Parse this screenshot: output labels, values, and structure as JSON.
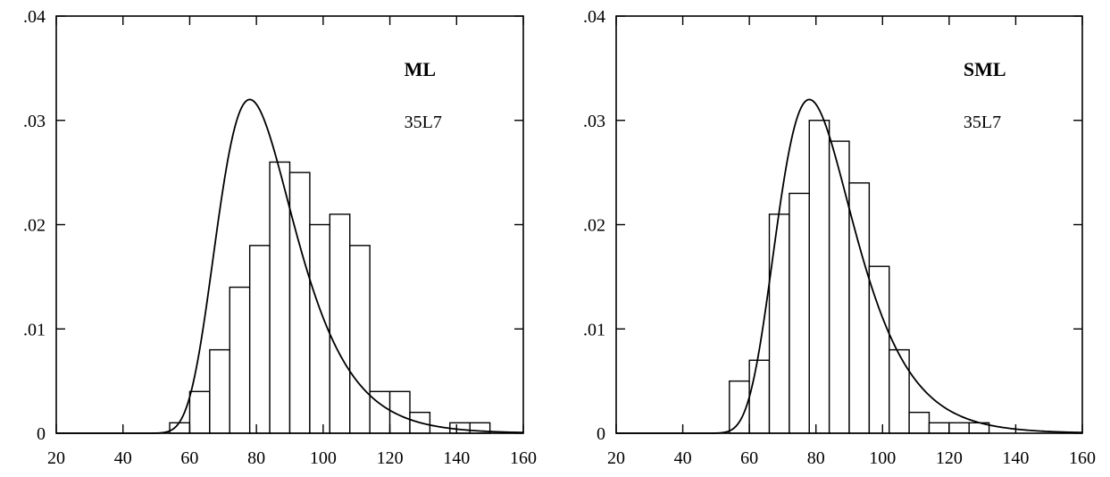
{
  "chart_data": [
    {
      "type": "bar",
      "title": "ML",
      "subtitle": "35L7",
      "xlim": [
        20,
        160
      ],
      "ylim": [
        0,
        0.04
      ],
      "xticks": [
        20,
        40,
        60,
        80,
        100,
        120,
        140,
        160
      ],
      "xtick_labels": [
        "20",
        "40",
        "60",
        "80",
        "100",
        "120",
        "140",
        "160"
      ],
      "yticks": [
        0,
        0.01,
        0.02,
        0.03,
        0.04
      ],
      "ytick_labels": [
        "0",
        ".01",
        ".02",
        ".03",
        ".04"
      ],
      "bin_width": 6,
      "bins": [
        {
          "x0": 54,
          "x1": 60,
          "value": 0.001
        },
        {
          "x0": 60,
          "x1": 66,
          "value": 0.004
        },
        {
          "x0": 66,
          "x1": 72,
          "value": 0.008
        },
        {
          "x0": 72,
          "x1": 78,
          "value": 0.014
        },
        {
          "x0": 78,
          "x1": 84,
          "value": 0.018
        },
        {
          "x0": 84,
          "x1": 90,
          "value": 0.026
        },
        {
          "x0": 90,
          "x1": 96,
          "value": 0.025
        },
        {
          "x0": 96,
          "x1": 102,
          "value": 0.02
        },
        {
          "x0": 102,
          "x1": 108,
          "value": 0.021
        },
        {
          "x0": 108,
          "x1": 114,
          "value": 0.018
        },
        {
          "x0": 114,
          "x1": 120,
          "value": 0.004
        },
        {
          "x0": 120,
          "x1": 126,
          "value": 0.004
        },
        {
          "x0": 126,
          "x1": 132,
          "value": 0.002
        },
        {
          "x0": 138,
          "x1": 144,
          "value": 0.001
        },
        {
          "x0": 144,
          "x1": 150,
          "value": 0.001
        }
      ],
      "curve": {
        "type": "gumbel",
        "mode": 78,
        "peak": 0.032,
        "scale": 11.5
      }
    },
    {
      "type": "bar",
      "title": "SML",
      "subtitle": "35L7",
      "xlim": [
        20,
        160
      ],
      "ylim": [
        0,
        0.04
      ],
      "xticks": [
        20,
        40,
        60,
        80,
        100,
        120,
        140,
        160
      ],
      "xtick_labels": [
        "20",
        "40",
        "60",
        "80",
        "100",
        "120",
        "140",
        "160"
      ],
      "yticks": [
        0,
        0.01,
        0.02,
        0.03,
        0.04
      ],
      "ytick_labels": [
        "0",
        ".01",
        ".02",
        ".03",
        ".04"
      ],
      "bin_width": 6,
      "bins": [
        {
          "x0": 54,
          "x1": 60,
          "value": 0.005
        },
        {
          "x0": 60,
          "x1": 66,
          "value": 0.007
        },
        {
          "x0": 66,
          "x1": 72,
          "value": 0.021
        },
        {
          "x0": 72,
          "x1": 78,
          "value": 0.023
        },
        {
          "x0": 78,
          "x1": 84,
          "value": 0.03
        },
        {
          "x0": 84,
          "x1": 90,
          "value": 0.028
        },
        {
          "x0": 90,
          "x1": 96,
          "value": 0.024
        },
        {
          "x0": 96,
          "x1": 102,
          "value": 0.016
        },
        {
          "x0": 102,
          "x1": 108,
          "value": 0.008
        },
        {
          "x0": 108,
          "x1": 114,
          "value": 0.002
        },
        {
          "x0": 114,
          "x1": 120,
          "value": 0.001
        },
        {
          "x0": 120,
          "x1": 126,
          "value": 0.001
        },
        {
          "x0": 126,
          "x1": 132,
          "value": 0.001
        }
      ],
      "curve": {
        "type": "gumbel",
        "mode": 78,
        "peak": 0.032,
        "scale": 11.5
      }
    }
  ]
}
